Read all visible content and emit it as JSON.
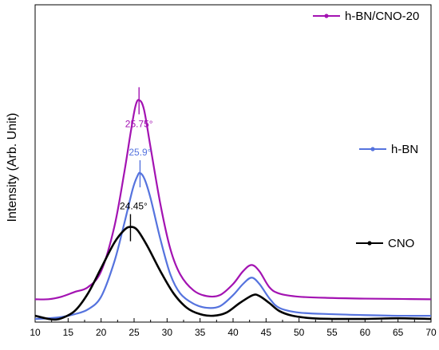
{
  "chart_data": {
    "type": "line",
    "title": "",
    "xlabel": "",
    "ylabel": "Intensity (Arb. Unit)",
    "xlim": [
      10,
      70
    ],
    "xticks": [
      10,
      15,
      20,
      25,
      30,
      35,
      40,
      45,
      50,
      55,
      60,
      65,
      70
    ],
    "y_ticks_shown": false,
    "grid": false,
    "legend": "inline, right of each curve",
    "series": [
      {
        "name": "h-BN/CNO-20",
        "color": "#a313b2",
        "points": [
          [
            10,
            0.072
          ],
          [
            12,
            0.072
          ],
          [
            14,
            0.08
          ],
          [
            16,
            0.095
          ],
          [
            18,
            0.11
          ],
          [
            20,
            0.16
          ],
          [
            22,
            0.3
          ],
          [
            23.5,
            0.47
          ],
          [
            24.5,
            0.6
          ],
          [
            25.2,
            0.68
          ],
          [
            25.75,
            0.7
          ],
          [
            26.5,
            0.67
          ],
          [
            27.5,
            0.55
          ],
          [
            29,
            0.37
          ],
          [
            30.5,
            0.23
          ],
          [
            32,
            0.15
          ],
          [
            34,
            0.1
          ],
          [
            36,
            0.082
          ],
          [
            38,
            0.085
          ],
          [
            40,
            0.12
          ],
          [
            41.5,
            0.16
          ],
          [
            42.8,
            0.18
          ],
          [
            44,
            0.16
          ],
          [
            45.5,
            0.11
          ],
          [
            47,
            0.09
          ],
          [
            50,
            0.08
          ],
          [
            55,
            0.076
          ],
          [
            60,
            0.074
          ],
          [
            65,
            0.073
          ],
          [
            70,
            0.072
          ]
        ],
        "peak_label": "25.75°",
        "peak_x": 25.75
      },
      {
        "name": "h-BN",
        "color": "#5573de",
        "points": [
          [
            10,
            0.01
          ],
          [
            12,
            0.012
          ],
          [
            14,
            0.016
          ],
          [
            16,
            0.025
          ],
          [
            18,
            0.04
          ],
          [
            20,
            0.08
          ],
          [
            22,
            0.19
          ],
          [
            23.5,
            0.31
          ],
          [
            24.8,
            0.42
          ],
          [
            25.5,
            0.46
          ],
          [
            25.9,
            0.47
          ],
          [
            26.6,
            0.45
          ],
          [
            27.5,
            0.39
          ],
          [
            29,
            0.26
          ],
          [
            30.5,
            0.15
          ],
          [
            32,
            0.09
          ],
          [
            34,
            0.058
          ],
          [
            36,
            0.045
          ],
          [
            38,
            0.05
          ],
          [
            40,
            0.085
          ],
          [
            41.5,
            0.12
          ],
          [
            42.8,
            0.14
          ],
          [
            44,
            0.12
          ],
          [
            45.5,
            0.075
          ],
          [
            47,
            0.045
          ],
          [
            50,
            0.03
          ],
          [
            55,
            0.025
          ],
          [
            60,
            0.022
          ],
          [
            65,
            0.02
          ],
          [
            70,
            0.02
          ]
        ],
        "peak_label": "25.9°",
        "peak_x": 25.9
      },
      {
        "name": "CNO",
        "color": "#000000",
        "points": [
          [
            10,
            0.02
          ],
          [
            12,
            0.01
          ],
          [
            13,
            0.008
          ],
          [
            14,
            0.012
          ],
          [
            16,
            0.035
          ],
          [
            18,
            0.09
          ],
          [
            20,
            0.17
          ],
          [
            22,
            0.25
          ],
          [
            23.5,
            0.29
          ],
          [
            24.45,
            0.3
          ],
          [
            25.5,
            0.29
          ],
          [
            27,
            0.24
          ],
          [
            29,
            0.16
          ],
          [
            31,
            0.09
          ],
          [
            33,
            0.045
          ],
          [
            35,
            0.025
          ],
          [
            37,
            0.02
          ],
          [
            39,
            0.03
          ],
          [
            41,
            0.06
          ],
          [
            43,
            0.085
          ],
          [
            44,
            0.082
          ],
          [
            45.5,
            0.06
          ],
          [
            47,
            0.035
          ],
          [
            49,
            0.02
          ],
          [
            52,
            0.012
          ],
          [
            55,
            0.01
          ],
          [
            60,
            0.01
          ],
          [
            65,
            0.012
          ],
          [
            70,
            0.01
          ]
        ],
        "peak_label": "24.45°",
        "peak_x": 24.45
      }
    ]
  }
}
